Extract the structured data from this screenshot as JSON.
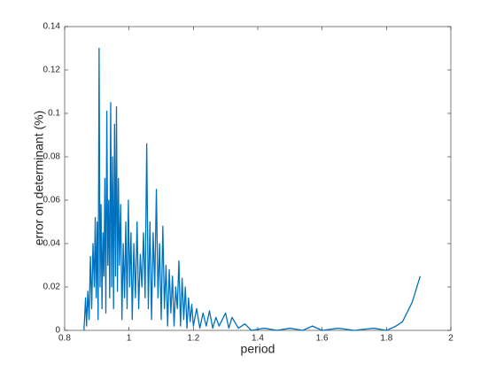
{
  "chart_data": {
    "type": "line",
    "xlabel": "period",
    "ylabel": "error on determinant (%)",
    "x": [
      0.86,
      0.865,
      0.868,
      0.872,
      0.876,
      0.88,
      0.884,
      0.888,
      0.892,
      0.895,
      0.898,
      0.901,
      0.904,
      0.907,
      0.91,
      0.913,
      0.916,
      0.919,
      0.922,
      0.925,
      0.928,
      0.931,
      0.934,
      0.937,
      0.94,
      0.943,
      0.946,
      0.949,
      0.952,
      0.955,
      0.958,
      0.961,
      0.964,
      0.967,
      0.97,
      0.974,
      0.978,
      0.982,
      0.986,
      0.99,
      0.994,
      0.998,
      1.002,
      1.006,
      1.01,
      1.015,
      1.02,
      1.025,
      1.03,
      1.035,
      1.04,
      1.045,
      1.05,
      1.055,
      1.06,
      1.065,
      1.07,
      1.075,
      1.08,
      1.085,
      1.09,
      1.095,
      1.1,
      1.105,
      1.11,
      1.115,
      1.12,
      1.125,
      1.13,
      1.135,
      1.14,
      1.145,
      1.15,
      1.155,
      1.16,
      1.165,
      1.17,
      1.175,
      1.18,
      1.185,
      1.19,
      1.195,
      1.2,
      1.21,
      1.22,
      1.23,
      1.24,
      1.25,
      1.26,
      1.27,
      1.28,
      1.3,
      1.31,
      1.32,
      1.34,
      1.36,
      1.38,
      1.42,
      1.46,
      1.5,
      1.54,
      1.57,
      1.6,
      1.65,
      1.7,
      1.76,
      1.8,
      1.83,
      1.85,
      1.88,
      1.905
    ],
    "series": [
      {
        "color": "#0072bd",
        "values": [
          0,
          0.015,
          0.002,
          0.018,
          0.005,
          0.034,
          0.01,
          0.04,
          0.02,
          0.052,
          0.015,
          0.05,
          0.005,
          0.13,
          0.02,
          0.058,
          0.01,
          0.045,
          0.025,
          0.07,
          0.008,
          0.101,
          0.03,
          0.06,
          0.015,
          0.105,
          0.02,
          0.08,
          0.01,
          0.095,
          0.025,
          0.103,
          0.018,
          0.07,
          0.03,
          0.058,
          0.005,
          0.04,
          0.015,
          0.05,
          0.01,
          0.06,
          0.02,
          0.045,
          0.005,
          0.04,
          0.015,
          0.05,
          0.01,
          0.035,
          0.02,
          0.045,
          0.015,
          0.086,
          0.01,
          0.05,
          0.005,
          0.045,
          0.02,
          0.065,
          0.015,
          0.04,
          0.005,
          0.048,
          0.01,
          0.03,
          0.002,
          0.028,
          0.008,
          0.025,
          0.002,
          0.02,
          0.01,
          0.032,
          0.002,
          0.024,
          0.005,
          0.02,
          0.001,
          0.015,
          0.004,
          0.012,
          0.002,
          0.01,
          0.001,
          0.008,
          0.002,
          0.009,
          0.001,
          0.006,
          0.002,
          0.008,
          0.001,
          0.006,
          0.001,
          0.003,
          0,
          0.001,
          0,
          0.001,
          0,
          0.002,
          0,
          0.001,
          0,
          0.001,
          0,
          0.002,
          0.004,
          0.013,
          0.025
        ]
      }
    ],
    "xlim": [
      0.8,
      2
    ],
    "xticks": [
      0.8,
      1,
      1.2,
      1.4,
      1.6,
      1.8,
      2
    ],
    "ylim": [
      0,
      0.14
    ],
    "yticks": [
      0,
      0.02,
      0.04,
      0.06,
      0.08,
      0.1,
      0.12,
      0.14
    ]
  }
}
